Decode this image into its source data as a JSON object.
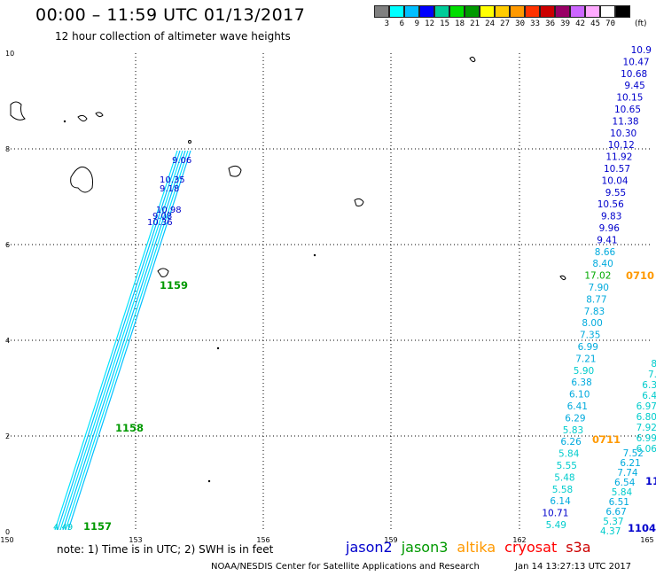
{
  "title": "00:00 – 11:59 UTC 01/13/2017",
  "subtitle": "12 hour collection of altimeter wave heights",
  "colorbar": {
    "labels": [
      "3",
      "6",
      "9",
      "12",
      "15",
      "18",
      "21",
      "24",
      "27",
      "30",
      "33",
      "36",
      "39",
      "42",
      "45",
      "70"
    ],
    "unit": "(ft)",
    "colors": [
      "#808080",
      "#00ffff",
      "#00bfff",
      "#0000ff",
      "#00cc99",
      "#00dd00",
      "#009900",
      "#ffff00",
      "#ffcc00",
      "#ff9900",
      "#ff3300",
      "#cc0000",
      "#990066",
      "#cc66ff",
      "#ffaaff",
      "#ffffff",
      "#000000"
    ]
  },
  "axes": {
    "x_ticks": [
      "150",
      "153",
      "156",
      "159",
      "162",
      "165"
    ],
    "y_ticks": [
      "0",
      "2",
      "4",
      "6",
      "8",
      "10"
    ]
  },
  "note": "note: 1) Time is in UTC; 2) SWH is in feet",
  "legend": [
    {
      "label": "jason2",
      "color": "#0000cc"
    },
    {
      "label": "jason3",
      "color": "#009900"
    },
    {
      "label": "altika",
      "color": "#ff9900"
    },
    {
      "label": "cryosat",
      "color": "#ff0000"
    },
    {
      "label": "s3a",
      "color": "#cc0000"
    }
  ],
  "credit": "NOAA/NESDIS Center for Satellite Applications and Research",
  "timestamp": "Jan 14 13:27:13 UTC 2017",
  "track_labels": {
    "right_column": [
      "10.9",
      "10.47",
      "10.68",
      "9.45",
      "10.15",
      "10.65",
      "11.38",
      "10.30",
      "10.12",
      "11.92",
      "10.57",
      "10.04",
      "9.55",
      "10.56",
      "9.83",
      "9.96",
      "9.41",
      "8.66",
      "8.40",
      "17.02",
      "7.90",
      "8.77",
      "7.83",
      "8.00",
      "7.35",
      "6.99",
      "7.21",
      "5.90",
      "6.38",
      "6.10",
      "6.41",
      "6.29",
      "5.83",
      "6.26",
      "5.84",
      "5.55",
      "5.48",
      "5.58",
      "6.14",
      "10.71",
      "5.49"
    ],
    "right_column2": [
      "7.52",
      "6.21",
      "7.74",
      "6.54",
      "5.84",
      "6.51",
      "6.67",
      "5.37",
      "4.37"
    ],
    "far_right": [
      "8",
      "7.",
      "6.3",
      "6.4",
      "6.97",
      "6.80",
      "7.92",
      "6.99",
      "6.06"
    ],
    "time_labels": [
      {
        "text": "0710",
        "color": "#ff9900"
      },
      {
        "text": "0711",
        "color": "#ff9900"
      },
      {
        "text": "1159",
        "color": "#009900"
      },
      {
        "text": "1158",
        "color": "#009900"
      },
      {
        "text": "1157",
        "color": "#009900"
      },
      {
        "text": "1104",
        "color": "#0000cc"
      },
      {
        "text": "11",
        "color": "#0000cc"
      }
    ],
    "left_track": [
      "9.06",
      "10.35",
      "9.18",
      "10.98",
      "9.08",
      "10.36",
      "4.49"
    ]
  }
}
